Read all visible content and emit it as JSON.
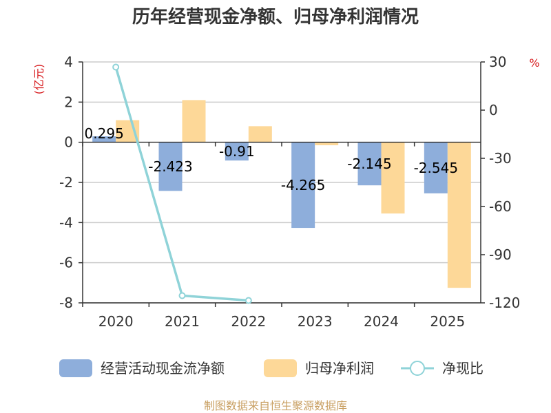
{
  "chart_data": {
    "type": "bar",
    "title": "历年经营现金净额、归母净利润情况",
    "categories": [
      "2020",
      "2021",
      "2022",
      "2023",
      "2024",
      "2025"
    ],
    "series": [
      {
        "name": "经营活动现金流净额",
        "kind": "bar",
        "axis": "left",
        "color": "#8eaedb",
        "values": [
          0.295,
          -2.423,
          -0.91,
          -4.265,
          -2.145,
          -2.545
        ],
        "labels": [
          "0.295",
          "-2.423",
          "-0.91",
          "-4.265",
          "-2.145",
          "-2.545"
        ]
      },
      {
        "name": "归母净利润",
        "kind": "bar",
        "axis": "left",
        "color": "#fdd898",
        "values": [
          1.1,
          2.1,
          0.8,
          -0.15,
          -3.55,
          -7.25
        ]
      },
      {
        "name": "净现比",
        "kind": "line",
        "axis": "right",
        "color": "#8fd3d8",
        "values": [
          26.8,
          -115.5,
          -118.5,
          null,
          null,
          null
        ]
      }
    ],
    "left_axis": {
      "unit": "(亿元)",
      "min": -8,
      "max": 4,
      "ticks": [
        "4",
        "2",
        "0",
        "-2",
        "-4",
        "-6",
        "-8"
      ]
    },
    "right_axis": {
      "unit": "%",
      "min": -120,
      "max": 30,
      "ticks": [
        "30",
        "0",
        "-30",
        "-60",
        "-90",
        "-120"
      ]
    },
    "grid": true,
    "legend_position": "bottom"
  },
  "source": "制图数据来自恒生聚源数据库"
}
